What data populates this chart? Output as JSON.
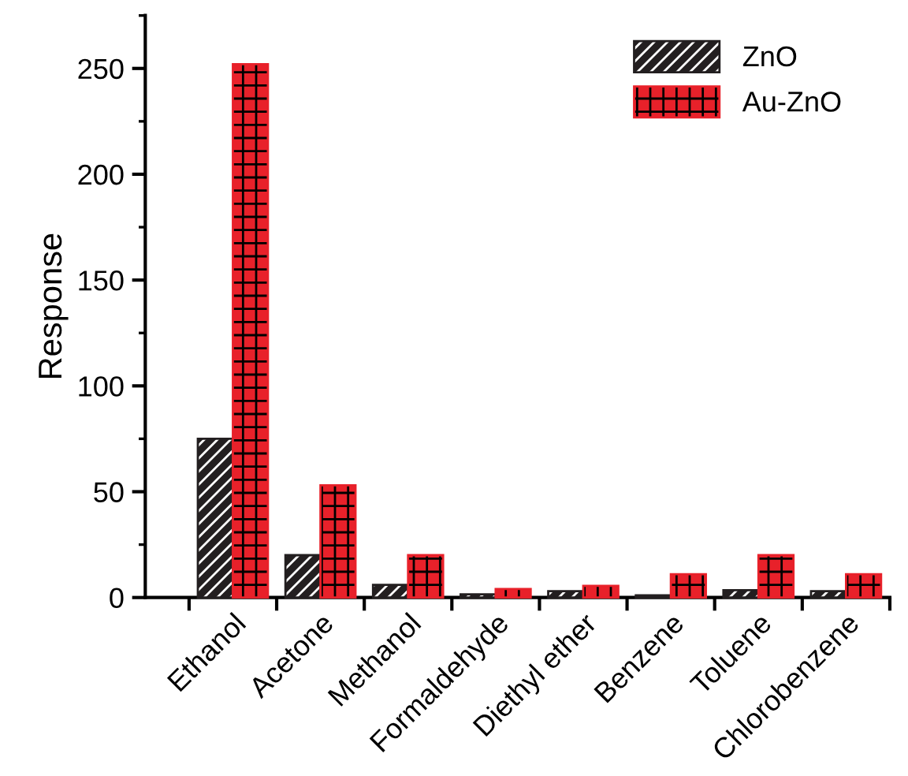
{
  "chart_data": {
    "type": "bar",
    "ylabel": "Response",
    "categories": [
      "Ethanol",
      "Acetone",
      "Methanol",
      "Formaldehyde",
      "Diethyl ether",
      "Benzene",
      "Toluene",
      "Chlorobenzene"
    ],
    "series": [
      {
        "name": "ZnO",
        "color": "#231f20",
        "values": [
          75,
          20,
          6,
          1.5,
          3,
          1,
          3.5,
          3
        ]
      },
      {
        "name": "Au-ZnO",
        "color": "#e8212a",
        "values": [
          252,
          53,
          20,
          4,
          5.5,
          11,
          20,
          11
        ]
      }
    ],
    "ylim": [
      0,
      275
    ],
    "yticks": [
      0,
      50,
      100,
      150,
      200,
      250
    ],
    "grid": false,
    "legend": "top right"
  }
}
